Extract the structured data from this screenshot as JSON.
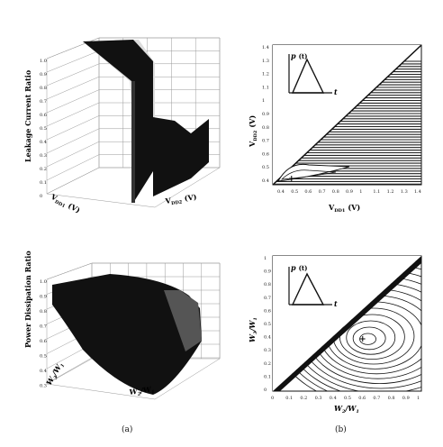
{
  "figure": {
    "panel_a_caption": "(a)",
    "panel_b_caption": "(b)"
  },
  "top_left": {
    "zlabel": "Leakage Current Ratio",
    "xlabel": "V",
    "xlabel_sub": "DD2",
    "xlabel_unit": "(V)",
    "ylabel": "V",
    "ylabel_sub": "DD1",
    "ylabel_unit": "(V)",
    "z_ticks": [
      "1.0",
      "0.9",
      "0.8",
      "0.7",
      "0.6",
      "0.5",
      "0.4",
      "0.3",
      "0.2",
      "0.1",
      "0"
    ],
    "surface_color": "#111111"
  },
  "top_right": {
    "xlabel": "V",
    "xlabel_sub": "DD1",
    "xlabel_unit": "(V)",
    "ylabel": "V",
    "ylabel_sub": "DD2",
    "ylabel_unit": "(V)",
    "x_ticks": [
      "0.4",
      "0.5",
      "0.6",
      "0.7",
      "0.8",
      "0.9",
      "1",
      "1.1",
      "1.2",
      "1.3",
      "1.4"
    ],
    "y_ticks": [
      "1.4",
      "1.3",
      "1.2",
      "1.1",
      "1",
      "0.9",
      "0.8",
      "0.7",
      "0.6",
      "0.5",
      "0.4"
    ],
    "inset_label": "p",
    "inset_label_arg": "(t)",
    "inset_axis": "t",
    "optimum_marker": "+"
  },
  "bottom_left": {
    "zlabel": "Power Dissipation Ratio",
    "xlabel": "W",
    "xlabel_sub": "2",
    "xlabel_den": "W",
    "xlabel_den_sub": "1",
    "ylabel": "W",
    "ylabel_sub": "3",
    "ylabel_den": "W",
    "ylabel_den_sub": "1",
    "z_ticks": [
      "1.0",
      "0.9",
      "0.8",
      "0.7",
      "0.6",
      "0.5",
      "0.4",
      "0.3"
    ],
    "surface_color": "#111111"
  },
  "bottom_right": {
    "xlabel": "W",
    "xlabel_sub": "2",
    "xlabel_den": "W",
    "xlabel_den_sub": "1",
    "ylabel": "W",
    "ylabel_sub": "3",
    "ylabel_den": "W",
    "ylabel_den_sub": "1",
    "x_ticks": [
      "0",
      "0.1",
      "0.2",
      "0.3",
      "0.4",
      "0.5",
      "0.6",
      "0.7",
      "0.8",
      "0.9",
      "1"
    ],
    "y_ticks": [
      "1",
      "0.9",
      "0.8",
      "0.7",
      "0.6",
      "0.5",
      "0.4",
      "0.3",
      "0.2",
      "0.1",
      "0"
    ],
    "inset_label": "p",
    "inset_label_arg": "(t)",
    "inset_axis": "t",
    "optimum_marker": "+"
  }
}
